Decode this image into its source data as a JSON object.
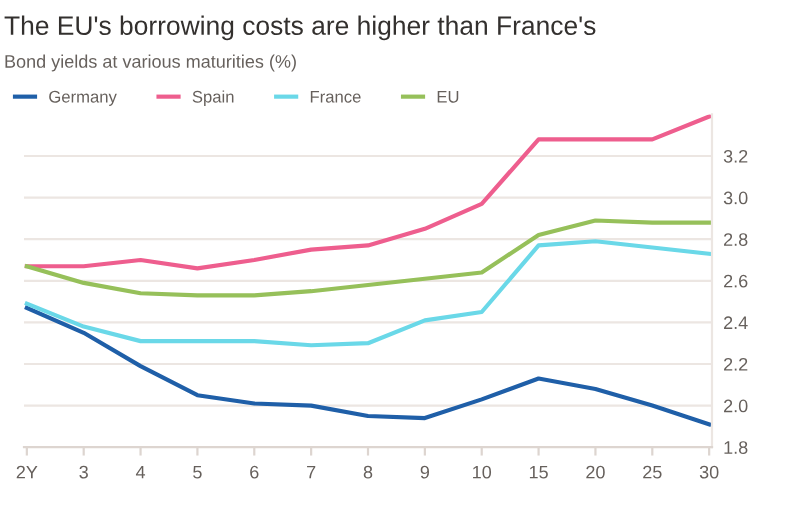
{
  "chart_data": {
    "type": "line",
    "title": "The EU's borrowing costs are higher than France's",
    "subtitle": "Bond yields at various maturities (%)",
    "categories": [
      "2Y",
      "3",
      "4",
      "5",
      "6",
      "7",
      "8",
      "9",
      "10",
      "15",
      "20",
      "25",
      "30"
    ],
    "series": [
      {
        "name": "Germany",
        "color": "#1f5fa8",
        "values": [
          2.47,
          2.35,
          2.19,
          2.05,
          2.01,
          2.0,
          1.95,
          1.94,
          2.03,
          2.13,
          2.08,
          2.0,
          1.91
        ]
      },
      {
        "name": "Spain",
        "color": "#ee5e8e",
        "values": [
          2.67,
          2.67,
          2.7,
          2.66,
          2.7,
          2.75,
          2.77,
          2.85,
          2.97,
          3.28,
          3.28,
          3.28,
          3.39
        ]
      },
      {
        "name": "France",
        "color": "#6ad8e8",
        "values": [
          2.49,
          2.38,
          2.31,
          2.31,
          2.31,
          2.29,
          2.3,
          2.41,
          2.45,
          2.77,
          2.79,
          2.76,
          2.73
        ]
      },
      {
        "name": "EU",
        "color": "#96c05a",
        "values": [
          2.67,
          2.59,
          2.54,
          2.53,
          2.53,
          2.55,
          2.58,
          2.61,
          2.64,
          2.82,
          2.89,
          2.88,
          2.88
        ]
      }
    ],
    "ylim": [
      1.8,
      3.4
    ],
    "yticks": [
      1.8,
      {
        "value": 2.0,
        "label": "2.0"
      },
      2.2,
      2.4,
      2.6,
      2.8,
      {
        "value": 3.0,
        "label": "3.0"
      },
      3.2
    ],
    "grid": "y",
    "legend": "top left",
    "marker": "none",
    "line_style": "solid"
  }
}
